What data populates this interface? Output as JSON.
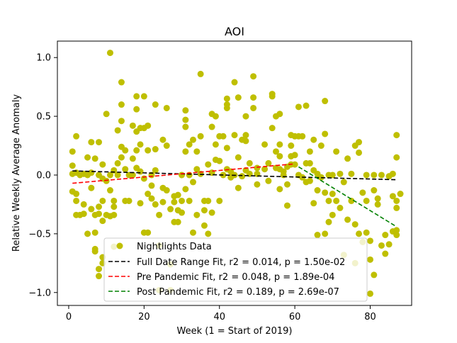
{
  "chart_data": {
    "type": "scatter",
    "title": "AOI",
    "xlabel": "Week (1 = Start of 2019)",
    "ylabel": "Relative Weekly Average Anomaly",
    "xlim": [
      -3,
      91
    ],
    "ylim": [
      -1.11,
      1.14
    ],
    "x_ticks": [
      0,
      20,
      40,
      60,
      80
    ],
    "x_tick_labels": [
      "0",
      "20",
      "40",
      "60",
      "80"
    ],
    "y_ticks": [
      -1.0,
      -0.5,
      0.0,
      0.5,
      1.0
    ],
    "y_tick_labels": [
      "−1.0",
      "−0.5",
      "0.0",
      "0.5",
      "1.0"
    ],
    "grid": false,
    "legend_position": "lower-center",
    "series": [
      {
        "name": "Nightlights Data",
        "kind": "scatter",
        "color": "#bfbf00",
        "points": [
          [
            1,
            0.2
          ],
          [
            1,
            0.08
          ],
          [
            1,
            0.01
          ],
          [
            1,
            -0.14
          ],
          [
            2,
            0.33
          ],
          [
            2,
            0.02
          ],
          [
            2,
            -0.16
          ],
          [
            2,
            -0.22
          ],
          [
            2,
            -0.34
          ],
          [
            3,
            0.0
          ],
          [
            3,
            -0.34
          ],
          [
            4,
            -0.33
          ],
          [
            4,
            -0.25
          ],
          [
            4,
            0.01
          ],
          [
            5,
            -0.5
          ],
          [
            5,
            0.15
          ],
          [
            5,
            0.0
          ],
          [
            6,
            0.28
          ],
          [
            6,
            -0.11
          ],
          [
            6,
            -0.29
          ],
          [
            6,
            0.02
          ],
          [
            7,
            -0.63
          ],
          [
            7,
            -0.65
          ],
          [
            7,
            -0.49
          ],
          [
            7,
            0.14
          ],
          [
            7,
            -0.34
          ],
          [
            8,
            -0.8
          ],
          [
            8,
            -0.86
          ],
          [
            8,
            0.0
          ],
          [
            8,
            0.28
          ],
          [
            8,
            -0.33
          ],
          [
            8,
            -0.27
          ],
          [
            9,
            -0.39
          ],
          [
            9,
            -0.03
          ],
          [
            9,
            0.09
          ],
          [
            9,
            -0.22
          ],
          [
            9,
            -0.7
          ],
          [
            9,
            -0.75
          ],
          [
            10,
            0.52
          ],
          [
            10,
            -0.34
          ],
          [
            10,
            -0.05
          ],
          [
            11,
            1.04
          ],
          [
            11,
            0.0
          ],
          [
            11,
            -0.13
          ],
          [
            11,
            -0.35
          ],
          [
            12,
            -0.27
          ],
          [
            12,
            -0.22
          ],
          [
            12,
            0.04
          ],
          [
            12,
            -0.61
          ],
          [
            12,
            -0.34
          ],
          [
            13,
            0.38
          ],
          [
            13,
            0.1
          ],
          [
            13,
            -0.0
          ],
          [
            14,
            0.79
          ],
          [
            14,
            0.6
          ],
          [
            14,
            0.46
          ],
          [
            14,
            0.24
          ],
          [
            14,
            0.15
          ],
          [
            15,
            0.05
          ],
          [
            15,
            -0.22
          ],
          [
            15,
            0.21
          ],
          [
            16,
            0.0
          ],
          [
            16,
            -0.22
          ],
          [
            17,
            0.42
          ],
          [
            17,
            0.14
          ],
          [
            17,
            0.0
          ],
          [
            18,
            0.67
          ],
          [
            18,
            0.56
          ],
          [
            18,
            0.37
          ],
          [
            18,
            0.21
          ],
          [
            18,
            0.06
          ],
          [
            19,
            0.4
          ],
          [
            19,
            0.26
          ],
          [
            19,
            0.03
          ],
          [
            19,
            -0.24
          ],
          [
            20,
            0.67
          ],
          [
            20,
            0.4
          ],
          [
            20,
            -0.03
          ],
          [
            20,
            -0.49
          ],
          [
            21,
            0.42
          ],
          [
            21,
            0.21
          ],
          [
            21,
            -0.16
          ],
          [
            21,
            -0.49
          ],
          [
            22,
            0.0
          ],
          [
            22,
            -0.09
          ],
          [
            22,
            -0.2
          ],
          [
            23,
            0.6
          ],
          [
            23,
            0.22
          ],
          [
            23,
            0.04
          ],
          [
            23,
            -0.25
          ],
          [
            24,
            -0.34
          ],
          [
            24,
            -0.6
          ],
          [
            24,
            -0.98
          ],
          [
            25,
            0.3
          ],
          [
            25,
            -0.11
          ],
          [
            25,
            -0.23
          ],
          [
            26,
            0.57
          ],
          [
            26,
            0.25
          ],
          [
            26,
            -0.13
          ],
          [
            27,
            -0.29
          ],
          [
            27,
            -0.76
          ],
          [
            27,
            -0.98
          ],
          [
            28,
            -0.18
          ],
          [
            28,
            -0.4
          ],
          [
            28,
            -0.23
          ],
          [
            29,
            -0.3
          ],
          [
            29,
            -0.17
          ],
          [
            29,
            -0.4
          ],
          [
            30,
            0.0
          ],
          [
            30,
            -0.22
          ],
          [
            30,
            -0.32
          ],
          [
            31,
            0.41
          ],
          [
            31,
            0.55
          ],
          [
            31,
            0.47
          ],
          [
            31,
            0.2
          ],
          [
            31,
            -0.12
          ],
          [
            32,
            0.26
          ],
          [
            32,
            -0.22
          ],
          [
            32,
            0.0
          ],
          [
            33,
            0.3
          ],
          [
            33,
            -0.49
          ],
          [
            33,
            -0.06
          ],
          [
            34,
            0.2
          ],
          [
            34,
            0.05
          ],
          [
            34,
            -0.34
          ],
          [
            35,
            0.86
          ],
          [
            35,
            0.33
          ],
          [
            35,
            0.01
          ],
          [
            36,
            -0.22
          ],
          [
            36,
            -0.43
          ],
          [
            36,
            -0.3
          ],
          [
            37,
            -0.22
          ],
          [
            37,
            -0.5
          ],
          [
            37,
            0.09
          ],
          [
            38,
            0.52
          ],
          [
            38,
            0.41
          ],
          [
            38,
            0.02
          ],
          [
            38,
            -0.32
          ],
          [
            39,
            0.5
          ],
          [
            39,
            0.26
          ],
          [
            39,
            0.13
          ],
          [
            40,
            0.33
          ],
          [
            40,
            0.12
          ],
          [
            40,
            -0.22
          ],
          [
            41,
            0.33
          ],
          [
            41,
            0.0
          ],
          [
            42,
            0.6
          ],
          [
            42,
            0.65
          ],
          [
            42,
            0.57
          ],
          [
            42,
            0.23
          ],
          [
            42,
            0.05
          ],
          [
            43,
            0.03
          ],
          [
            43,
            -0.02
          ],
          [
            44,
            0.79
          ],
          [
            44,
            0.34
          ],
          [
            44,
            0.0
          ],
          [
            45,
            0.66
          ],
          [
            45,
            0.15
          ],
          [
            45,
            -0.11
          ],
          [
            46,
            0.3
          ],
          [
            46,
            -0.01
          ],
          [
            47,
            0.5
          ],
          [
            47,
            0.34
          ],
          [
            47,
            0.29
          ],
          [
            47,
            0.04
          ],
          [
            48,
            0.1
          ],
          [
            48,
            0.01
          ],
          [
            49,
            0.84
          ],
          [
            49,
            0.66
          ],
          [
            49,
            0.57
          ],
          [
            50,
            0.06
          ],
          [
            50,
            0.01
          ],
          [
            50,
            -0.08
          ],
          [
            52,
            0.26
          ],
          [
            52,
            0.05
          ],
          [
            53,
            0.1
          ],
          [
            53,
            -0.05
          ],
          [
            54,
            0.69
          ],
          [
            54,
            0.67
          ],
          [
            54,
            0.4
          ],
          [
            55,
            0.5
          ],
          [
            55,
            0.2
          ],
          [
            55,
            0.06
          ],
          [
            56,
            0.52
          ],
          [
            56,
            0.26
          ],
          [
            56,
            0.16
          ],
          [
            56,
            0.05
          ],
          [
            56,
            -0.12
          ],
          [
            57,
            0.03
          ],
          [
            57,
            0.0
          ],
          [
            58,
            0.07
          ],
          [
            58,
            -0.08
          ],
          [
            58,
            -0.26
          ],
          [
            59,
            0.34
          ],
          [
            59,
            0.25
          ],
          [
            59,
            0.16
          ],
          [
            59,
            0.09
          ],
          [
            60,
            0.33
          ],
          [
            60,
            0.17
          ],
          [
            60,
            0.09
          ],
          [
            61,
            0.58
          ],
          [
            61,
            0.33
          ],
          [
            61,
            0.0
          ],
          [
            62,
            0.33
          ],
          [
            62,
            -0.02
          ],
          [
            63,
            0.59
          ],
          [
            63,
            0.1
          ],
          [
            63,
            -0.06
          ],
          [
            64,
            0.2
          ],
          [
            64,
            0.1
          ],
          [
            64,
            -0.05
          ],
          [
            65,
            0.3
          ],
          [
            65,
            0.04
          ],
          [
            65,
            -0.24
          ],
          [
            66,
            0.01
          ],
          [
            66,
            -0.51
          ],
          [
            66,
            -0.13
          ],
          [
            67,
            0.25
          ],
          [
            67,
            -0.02
          ],
          [
            68,
            0.63
          ],
          [
            68,
            0.35
          ],
          [
            68,
            -0.15
          ],
          [
            68,
            -0.5
          ],
          [
            69,
            0.0
          ],
          [
            69,
            -0.22
          ],
          [
            69,
            -0.4
          ],
          [
            70,
            0.0
          ],
          [
            70,
            -0.16
          ],
          [
            70,
            -0.34
          ],
          [
            71,
            0.2
          ],
          [
            71,
            -0.22
          ],
          [
            72,
            -0.28
          ],
          [
            72,
            0.01
          ],
          [
            73,
            -0.06
          ],
          [
            73,
            -0.68
          ],
          [
            74,
            0.14
          ],
          [
            74,
            -0.38
          ],
          [
            75,
            0.01
          ],
          [
            75,
            -0.22
          ],
          [
            76,
            0.25
          ],
          [
            76,
            -0.42
          ],
          [
            76,
            -0.75
          ],
          [
            77,
            0.28
          ],
          [
            77,
            0.19
          ],
          [
            77,
            -0.5
          ],
          [
            78,
            -0.15
          ],
          [
            78,
            -0.57
          ],
          [
            79,
            -0.49
          ],
          [
            79,
            -0.22
          ],
          [
            79,
            0.0
          ],
          [
            80,
            -0.56
          ],
          [
            80,
            -0.72
          ],
          [
            80,
            -1.01
          ],
          [
            81,
            -0.85
          ],
          [
            81,
            -0.13
          ],
          [
            81,
            0.0
          ],
          [
            82,
            -0.25
          ],
          [
            82,
            -0.2
          ],
          [
            83,
            0.0
          ],
          [
            83,
            -0.6
          ],
          [
            84,
            -0.51
          ],
          [
            84,
            -0.67
          ],
          [
            85,
            -0.59
          ],
          [
            85,
            -0.01
          ],
          [
            86,
            -0.48
          ],
          [
            86,
            -0.18
          ],
          [
            86,
            0.01
          ],
          [
            87,
            0.34
          ],
          [
            87,
            0.15
          ],
          [
            87,
            -0.47
          ],
          [
            87,
            -0.51
          ],
          [
            87,
            -0.28
          ],
          [
            87,
            -0.22
          ],
          [
            88,
            -0.16
          ]
        ]
      },
      {
        "name": "Full Date Range Fit, r2 = 0.014, p = 1.50e-02",
        "kind": "line",
        "color": "#000000",
        "dash": "dashed",
        "x": [
          1,
          87
        ],
        "y": [
          0.035,
          -0.04
        ]
      },
      {
        "name": "Pre Pandemic Fit, r2 = 0.048, p = 1.89e-04",
        "kind": "line",
        "color": "#ff0000",
        "dash": "dashed",
        "x": [
          1,
          60
        ],
        "y": [
          -0.07,
          0.095
        ]
      },
      {
        "name": "Post Pandemic Fit, r2 = 0.189, p = 2.69e-07",
        "kind": "line",
        "color": "#008000",
        "dash": "dashed",
        "x": [
          61,
          87
        ],
        "y": [
          0.07,
          -0.44
        ]
      }
    ]
  }
}
